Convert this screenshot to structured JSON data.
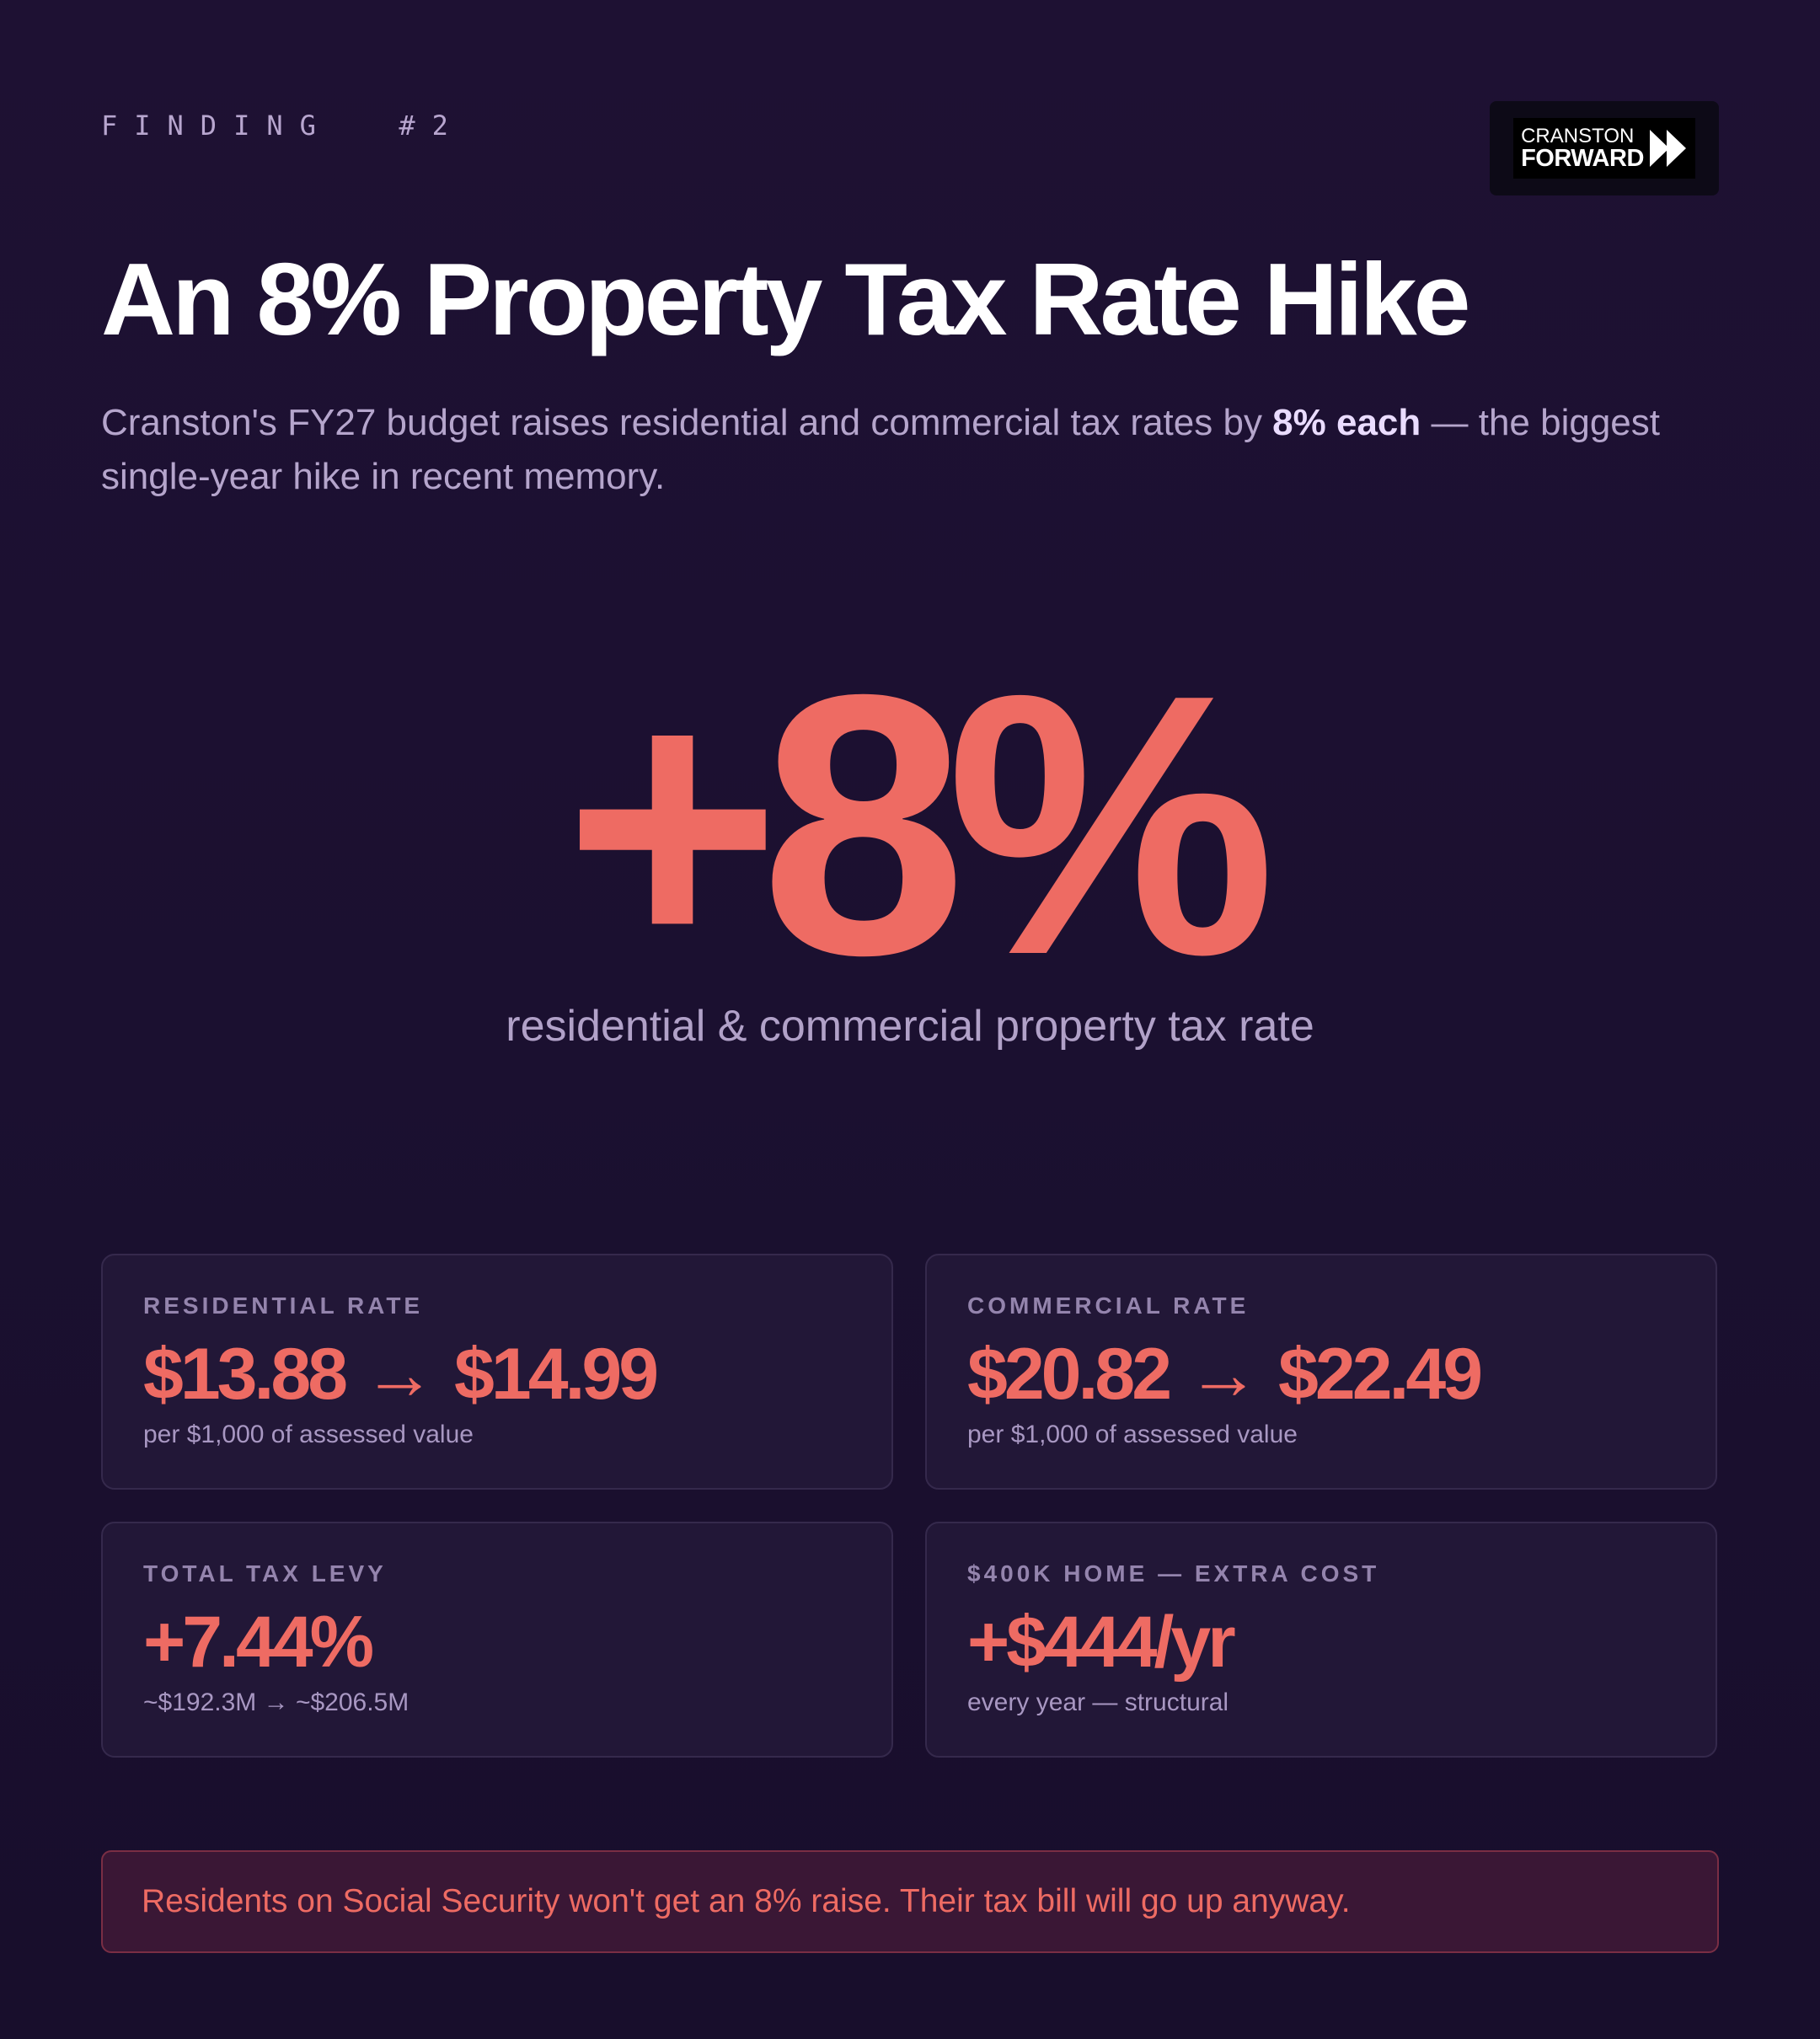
{
  "eyebrow": "FINDING  #2",
  "logo": {
    "line1": "CRANSTON",
    "line2": "FORWARD",
    "icon": "fast-forward-icon"
  },
  "title": "An 8% Property Tax Rate Hike",
  "subtitle": {
    "before": "Cranston's FY27 budget raises residential and commercial tax rates by ",
    "emphasis": "8% each",
    "after": " — the biggest single-year hike in recent memory."
  },
  "hero": {
    "value": "+8%",
    "caption": "residential & commercial property tax rate"
  },
  "cards": [
    {
      "label": "RESIDENTIAL RATE",
      "from": "$13.88",
      "arrow": "→",
      "to": "$14.99",
      "note": "per $1,000 of assessed value"
    },
    {
      "label": "COMMERCIAL RATE",
      "from": "$20.82",
      "arrow": "→",
      "to": "$22.49",
      "note": "per $1,000 of assessed value"
    },
    {
      "label": "TOTAL TAX LEVY",
      "value": "+7.44%",
      "note": "~$192.3M → ~$206.5M"
    },
    {
      "label": "$400K HOME — EXTRA COST",
      "value": "+$444/yr",
      "note": "every year — structural"
    }
  ],
  "callout": "Residents on Social Security won't get an 8% raise. Their tax bill will go up anyway.",
  "colors": {
    "background": "#1b1030",
    "accent": "#ee6b63",
    "muted_text": "#b5a5cc",
    "card_background": "#221737"
  }
}
